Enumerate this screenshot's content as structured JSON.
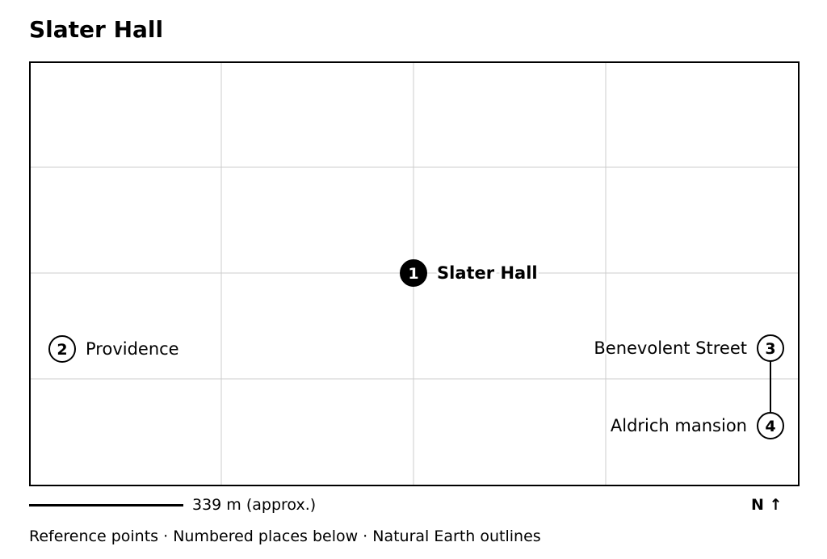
{
  "title": "Slater Hall",
  "map": {
    "grid": true,
    "places": [
      {
        "number": "1",
        "name": "Slater Hall",
        "primary": true
      },
      {
        "number": "2",
        "name": "Providence",
        "primary": false
      },
      {
        "number": "3",
        "name": "Benevolent Street",
        "primary": false
      },
      {
        "number": "4",
        "name": "Aldrich mansion",
        "primary": false
      }
    ]
  },
  "scale": {
    "label": "339 m (approx.)"
  },
  "north": {
    "label": "N ↑"
  },
  "footer": {
    "note": "Reference points · Numbered places below · Natural Earth outlines"
  },
  "colors": {
    "frame": "#000000",
    "grid": "#cccccc",
    "primary_marker": "#000000",
    "marker_fill": "#ffffff",
    "text": "#000000"
  }
}
